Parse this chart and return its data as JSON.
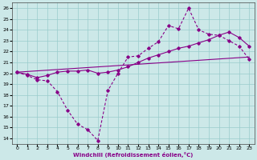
{
  "xlabel": "Windchill (Refroidissement éolien,°C)",
  "background_color": "#cce8e8",
  "grid_color": "#99cccc",
  "line_color": "#880088",
  "xlim": [
    -0.5,
    23.5
  ],
  "ylim": [
    13.5,
    26.5
  ],
  "xticks": [
    0,
    1,
    2,
    3,
    4,
    5,
    6,
    7,
    8,
    9,
    10,
    11,
    12,
    13,
    14,
    15,
    16,
    17,
    18,
    19,
    20,
    21,
    22,
    23
  ],
  "yticks": [
    14,
    15,
    16,
    17,
    18,
    19,
    20,
    21,
    22,
    23,
    24,
    25,
    26
  ],
  "line1_x": [
    0,
    1,
    2,
    3,
    4,
    5,
    6,
    7,
    8,
    9,
    10,
    11,
    12,
    13,
    14,
    15,
    16,
    17,
    18,
    19,
    20,
    21,
    22,
    23
  ],
  "line1_y": [
    20.1,
    19.8,
    19.4,
    19.3,
    18.3,
    16.6,
    15.3,
    14.8,
    13.8,
    18.4,
    20.0,
    21.5,
    21.6,
    22.3,
    22.9,
    24.4,
    24.1,
    26.0,
    24.0,
    23.6,
    23.5,
    23.0,
    22.5,
    21.3
  ],
  "line2_x": [
    0,
    1,
    2,
    3,
    4,
    5,
    6,
    7,
    8,
    9,
    10,
    11,
    12,
    13,
    14,
    15,
    16,
    17,
    18,
    19,
    20,
    21,
    22,
    23
  ],
  "line2_y": [
    20.1,
    19.9,
    19.6,
    19.8,
    20.1,
    20.2,
    20.2,
    20.3,
    20.0,
    20.1,
    20.3,
    20.6,
    21.0,
    21.4,
    21.7,
    22.0,
    22.3,
    22.5,
    22.8,
    23.1,
    23.5,
    23.8,
    23.3,
    22.5
  ],
  "line3_x": [
    0,
    23
  ],
  "line3_y": [
    20.1,
    21.5
  ]
}
